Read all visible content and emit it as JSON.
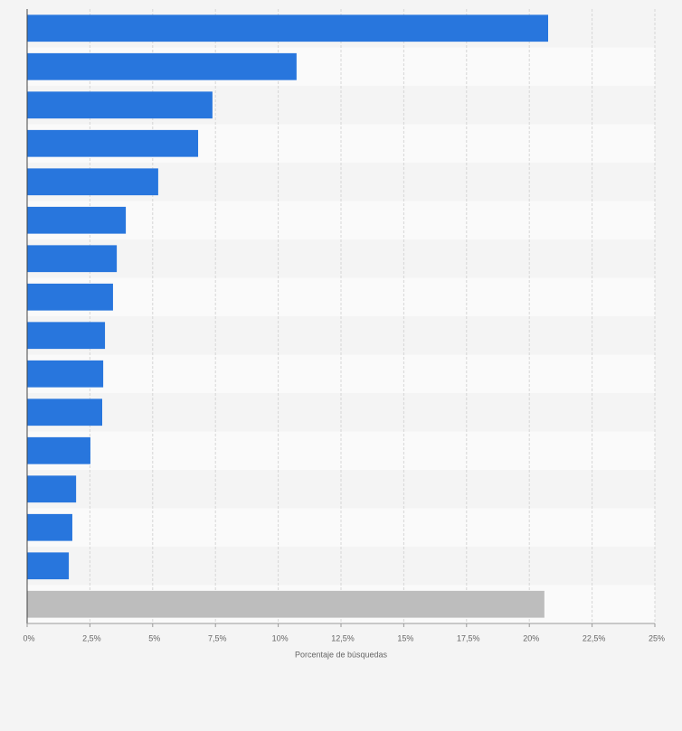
{
  "chart_data": {
    "type": "barh",
    "x_label": "Porcentaje de búsquedas",
    "categories": [
      null,
      null,
      null,
      null,
      null,
      null,
      null,
      null,
      null,
      null,
      null,
      null,
      null,
      null,
      null,
      null
    ],
    "values": [
      20.75,
      10.73,
      7.38,
      6.81,
      5.22,
      3.93,
      3.57,
      3.42,
      3.1,
      3.03,
      2.99,
      2.52,
      1.95,
      1.8,
      1.66,
      20.6
    ],
    "colors": [
      "#2876dd",
      "#2876dd",
      "#2876dd",
      "#2876dd",
      "#2876dd",
      "#2876dd",
      "#2876dd",
      "#2876dd",
      "#2876dd",
      "#2876dd",
      "#2876dd",
      "#2876dd",
      "#2876dd",
      "#2876dd",
      "#2876dd",
      "#bdbdbd"
    ],
    "xlim": [
      0,
      25
    ],
    "xticks": [
      {
        "value": 0,
        "label": "0%"
      },
      {
        "value": 2.5,
        "label": "2,5%"
      },
      {
        "value": 5,
        "label": "5%"
      },
      {
        "value": 7.5,
        "label": "7,5%"
      },
      {
        "value": 10,
        "label": "10%"
      },
      {
        "value": 12.5,
        "label": "12,5%"
      },
      {
        "value": 15,
        "label": "15%"
      },
      {
        "value": 17.5,
        "label": "17,5%"
      },
      {
        "value": 20,
        "label": "20%"
      },
      {
        "value": 22.5,
        "label": "22,5%"
      },
      {
        "value": 25,
        "label": "25%"
      }
    ],
    "grid": true
  }
}
